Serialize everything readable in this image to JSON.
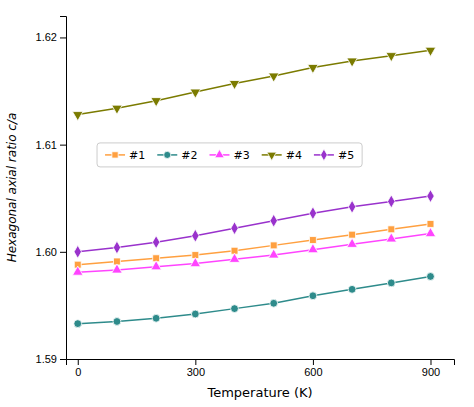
{
  "chart_data": {
    "type": "line",
    "xlabel": "Temperature (K)",
    "ylabel": "Hexagonal axial ratio c/a",
    "x": [
      0,
      100,
      200,
      300,
      400,
      500,
      600,
      700,
      800,
      900
    ],
    "xlim": [
      -30,
      960
    ],
    "xticks": [
      0,
      300,
      600,
      900
    ],
    "ylim": [
      1.59,
      1.622
    ],
    "yticks": [
      1.59,
      {
        "value": 1.6,
        "label": "1.60"
      },
      1.61,
      1.62
    ],
    "legend": "upper left",
    "series": [
      {
        "name": "#1",
        "color": "#FFA040",
        "marker": "square",
        "values": [
          1.5988,
          1.5991,
          1.5994,
          1.5997,
          1.6001,
          1.6006,
          1.6011,
          1.6016,
          1.6021,
          1.6026
        ]
      },
      {
        "name": "#2",
        "color": "#2E8B8B",
        "marker": "circle",
        "values": [
          1.5933,
          1.5935,
          1.5938,
          1.5942,
          1.5947,
          1.5952,
          1.5959,
          1.5965,
          1.5971,
          1.5977
        ]
      },
      {
        "name": "#3",
        "color": "#FF44FF",
        "marker": "triangle-up",
        "values": [
          1.5981,
          1.5983,
          1.5986,
          1.5989,
          1.5993,
          1.5997,
          1.6002,
          1.6007,
          1.6012,
          1.6017
        ]
      },
      {
        "name": "#4",
        "color": "#7B7B00",
        "marker": "triangle-down",
        "values": [
          1.6128,
          1.6134,
          1.6141,
          1.6149,
          1.6157,
          1.6164,
          1.6172,
          1.6178,
          1.6183,
          1.6188
        ]
      },
      {
        "name": "#5",
        "color": "#9932CC",
        "marker": "diamond",
        "values": [
          1.6,
          1.6004,
          1.6009,
          1.6015,
          1.6022,
          1.6029,
          1.6036,
          1.6042,
          1.6047,
          1.6052
        ]
      }
    ]
  }
}
